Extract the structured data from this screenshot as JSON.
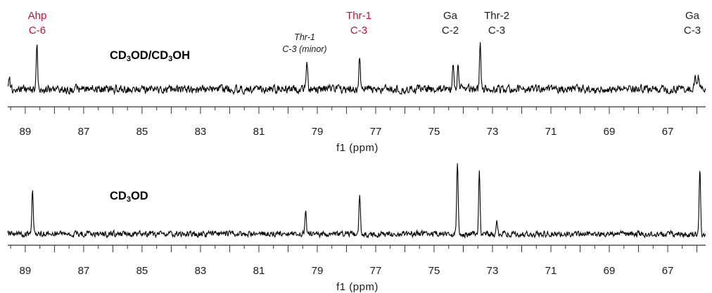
{
  "chart_data": [
    {
      "type": "line",
      "title": "CD3OD/CD3OH",
      "title_parts": {
        "a": "CD",
        "b": "3",
        "c": "OD/CD",
        "d": "3",
        "e": "OH"
      },
      "xlabel": "f1 (ppm)",
      "xlim": [
        89.6,
        65.7
      ],
      "x_reversed": true,
      "ticks": [
        "89",
        "87",
        "85",
        "83",
        "81",
        "79",
        "77",
        "75",
        "73",
        "71",
        "69",
        "67"
      ],
      "tick_values": [
        89,
        87,
        85,
        83,
        81,
        79,
        77,
        75,
        73,
        71,
        69,
        67
      ],
      "minor_ticks_per_major": 4,
      "grid": false,
      "peaks": [
        {
          "x": 88.6,
          "height": 0.9
        },
        {
          "x": 89.55,
          "height": 0.3
        },
        {
          "x": 79.35,
          "height": 0.55
        },
        {
          "x": 77.55,
          "height": 0.7
        },
        {
          "x": 74.35,
          "height": 0.5
        },
        {
          "x": 74.18,
          "height": 0.48
        },
        {
          "x": 73.42,
          "height": 1.0
        },
        {
          "x": 66.05,
          "height": 0.32
        },
        {
          "x": 65.95,
          "height": 0.25
        }
      ],
      "annotations": [
        {
          "lines": [
            "Ahp",
            "C-6"
          ],
          "x": 88.6,
          "color": "#c8102e",
          "italic": false
        },
        {
          "lines": [
            "Thr-1",
            "C-3 (minor)"
          ],
          "x": 79.35,
          "color": "#1a1a1a",
          "italic": true
        },
        {
          "lines": [
            "Thr-1",
            "C-3"
          ],
          "x": 77.55,
          "color": "#c8102e",
          "italic": false
        },
        {
          "lines": [
            "Ga",
            "C-2"
          ],
          "x": 74.3,
          "color": "#1a1a1a",
          "italic": false
        },
        {
          "lines": [
            "Thr-2",
            "C-3"
          ],
          "x": 73.42,
          "color": "#1a1a1a",
          "italic": false
        },
        {
          "lines": [
            "Ga",
            "C-3"
          ],
          "x": 66.0,
          "color": "#1a1a1a",
          "italic": false
        }
      ]
    },
    {
      "type": "line",
      "title": "CD3OD",
      "title_parts": {
        "a": "CD",
        "b": "3",
        "c": "OD"
      },
      "xlabel": "f1 (ppm)",
      "xlim": [
        89.6,
        65.7
      ],
      "x_reversed": true,
      "ticks": [
        "89",
        "87",
        "85",
        "83",
        "81",
        "79",
        "77",
        "75",
        "73",
        "71",
        "69",
        "67"
      ],
      "tick_values": [
        89,
        87,
        85,
        83,
        81,
        79,
        77,
        75,
        73,
        71,
        69,
        67
      ],
      "minor_ticks_per_major": 4,
      "grid": false,
      "peaks": [
        {
          "x": 88.75,
          "height": 0.62
        },
        {
          "x": 79.4,
          "height": 0.3
        },
        {
          "x": 77.55,
          "height": 0.5
        },
        {
          "x": 74.2,
          "height": 1.0
        },
        {
          "x": 73.45,
          "height": 0.85
        },
        {
          "x": 72.85,
          "height": 0.15
        },
        {
          "x": 65.9,
          "height": 0.92
        }
      ]
    }
  ]
}
